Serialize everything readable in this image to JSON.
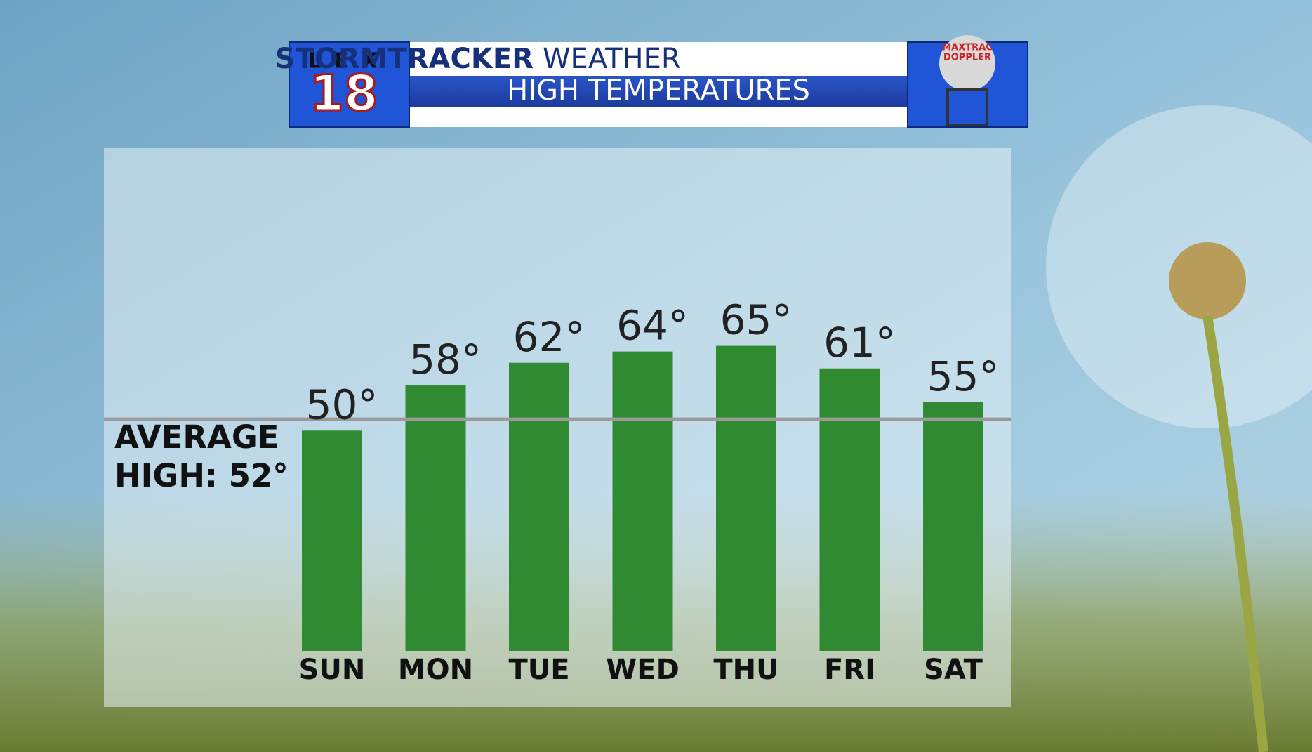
{
  "header": {
    "brand": "LEX",
    "channel": "18",
    "title": "STORMTRACKER",
    "title_suffix": "WEATHER",
    "subtitle": "HIGH TEMPERATURES",
    "badge": [
      "MAXTRAC",
      "DOPPLER"
    ]
  },
  "chart_data": {
    "type": "bar",
    "categories": [
      "SUN",
      "MON",
      "TUE",
      "WED",
      "THU",
      "FRI",
      "SAT"
    ],
    "values": [
      50,
      58,
      62,
      64,
      65,
      61,
      55
    ],
    "value_labels": [
      "50°",
      "58°",
      "62°",
      "64°",
      "65°",
      "61°",
      "55°"
    ],
    "color": "#2f8a32",
    "ylim": [
      11,
      100
    ],
    "reference_line": {
      "value": 52,
      "label": [
        "AVERAGE",
        "HIGH: 52°"
      ],
      "color": "#9a9a9a"
    }
  }
}
